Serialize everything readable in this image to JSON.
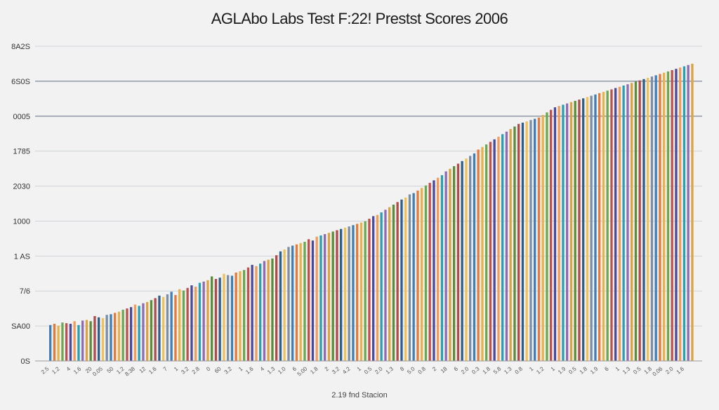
{
  "chart_data": {
    "type": "bar",
    "title": "AGLAbo Labs Test F:22! Prestst Scores 2006",
    "xlabel": "2.19 fnd Stacion",
    "ylabel": "",
    "grid": true,
    "legend": "none",
    "y_tick_labels": [
      "0S",
      "SA00",
      "7/6",
      "1 AS",
      "1000",
      "2030",
      "1785",
      "0005",
      "6S0S",
      "8A2S"
    ],
    "x_tick_labels": [
      "2.5",
      "1.2",
      "4",
      "1.6",
      "20",
      "0.05",
      "50",
      "1.2",
      "8.38",
      "12",
      "1.6",
      "7",
      "1",
      "3.2",
      "2.8",
      "0",
      "60",
      "3.2",
      "1",
      "1.6",
      "4",
      "1.3",
      "1.0",
      "6",
      "5.00",
      "1.8",
      "2",
      "3.2",
      "4.2",
      "1",
      "0.5",
      "2.0",
      "1.3",
      "8",
      "5.0",
      "0.8",
      "2",
      "18",
      "6",
      "2.0",
      "0.3",
      "1.8",
      "5.8",
      "1.3",
      "0.8",
      "1",
      "1.2",
      "1",
      "1.9",
      "0.5",
      "1.8",
      "1.9",
      "6",
      "1",
      "1.3",
      "0.5",
      "1.8",
      "0.06",
      "2.0",
      "1.6"
    ],
    "values": [
      56,
      58,
      55,
      60,
      59,
      58,
      62,
      56,
      63,
      64,
      62,
      70,
      68,
      67,
      72,
      73,
      75,
      77,
      80,
      82,
      84,
      88,
      86,
      90,
      92,
      95,
      98,
      102,
      100,
      104,
      108,
      103,
      112,
      110,
      114,
      118,
      116,
      122,
      124,
      126,
      132,
      128,
      130,
      136,
      134,
      133,
      138,
      140,
      142,
      146,
      150,
      148,
      152,
      156,
      158,
      160,
      165,
      171,
      174,
      178,
      180,
      182,
      184,
      186,
      190,
      188,
      194,
      196,
      198,
      200,
      202,
      204,
      206,
      208,
      210,
      212,
      214,
      216,
      218,
      222,
      226,
      228,
      232,
      236,
      240,
      244,
      248,
      252,
      255,
      260,
      262,
      266,
      270,
      274,
      278,
      282,
      286,
      290,
      296,
      300,
      304,
      308,
      312,
      316,
      320,
      324,
      330,
      334,
      338,
      342,
      346,
      350,
      354,
      358,
      362,
      366,
      370,
      372,
      374,
      376,
      378,
      380,
      384,
      388,
      392,
      396,
      398,
      400,
      402,
      404,
      406,
      408,
      410,
      412,
      414,
      416,
      418,
      420,
      422,
      424,
      426,
      428,
      430,
      432,
      434,
      436,
      438,
      440,
      442,
      444,
      446,
      448,
      450,
      452,
      454,
      456,
      458,
      460,
      462,
      464
    ],
    "ylim": [
      0,
      500
    ]
  },
  "palette": [
    "#3f7fb5",
    "#e57b3a",
    "#e8b14a",
    "#6aa84f",
    "#c0504d",
    "#4a4a9c",
    "#f39c5a",
    "#2a9fb0",
    "#8e6bb3",
    "#d9a441",
    "#5b8c3a",
    "#b34a4a",
    "#2d5f8a",
    "#f0c05a",
    "#7a8fa6"
  ]
}
